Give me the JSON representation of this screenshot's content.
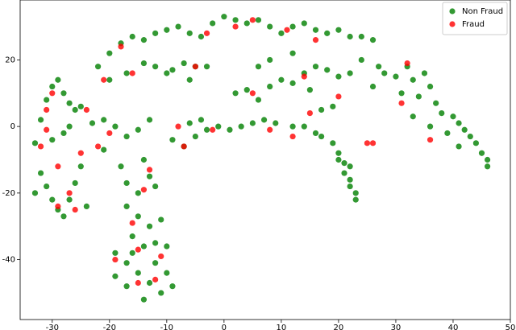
{
  "chart_data": {
    "type": "scatter",
    "xlim": [
      -35.6,
      50
    ],
    "ylim": [
      -58,
      38
    ],
    "xticks": [
      -30,
      -20,
      -10,
      0,
      10,
      20,
      30,
      40,
      50
    ],
    "yticks": [
      -40,
      -20,
      0,
      20
    ],
    "legend": "upper right",
    "series": [
      {
        "name": "Non Fraud",
        "color": "#008000",
        "x": [
          -22,
          -20,
          -18,
          -16,
          -14,
          -12,
          -10,
          -8,
          -6,
          -4,
          -2,
          0,
          2,
          4,
          6,
          8,
          10,
          12,
          14,
          16,
          18,
          20,
          22,
          24,
          26,
          -20,
          -17,
          -14,
          -12,
          -9,
          -7,
          -5,
          -3,
          -6,
          -10,
          -33,
          -32,
          -31,
          -30,
          -29,
          -28,
          -27,
          -26,
          -25,
          -32,
          -31,
          -30,
          -29,
          -28,
          -27,
          -26,
          -25,
          -24,
          -33,
          -30,
          -28,
          -27,
          -23,
          -21,
          -19,
          -17,
          -15,
          -13,
          -21,
          -18,
          -17,
          -15,
          -13,
          -14,
          -12,
          -17,
          -15,
          -13,
          -16,
          -12,
          -10,
          -19,
          -17,
          -15,
          -13,
          -11,
          -14,
          -17,
          -19,
          -10,
          -9,
          -12,
          -16,
          -11,
          -14,
          -9,
          -7,
          -5,
          -3,
          -1,
          1,
          3,
          5,
          7,
          9,
          12,
          14,
          16,
          -6,
          -4,
          2,
          4,
          6,
          8,
          10,
          12,
          14,
          16,
          18,
          20,
          22,
          24,
          6,
          8,
          12,
          15,
          17,
          19,
          17,
          19,
          20,
          21,
          21,
          22,
          22,
          23,
          23,
          20,
          22,
          28,
          30,
          32,
          33,
          35,
          36,
          34,
          37,
          38,
          40,
          41,
          42,
          43,
          44,
          45,
          46,
          46,
          39,
          41,
          36,
          33,
          31,
          26,
          27
        ],
        "y": [
          18,
          22,
          25,
          27,
          26,
          28,
          29,
          30,
          28,
          27,
          31,
          33,
          32,
          31,
          32,
          30,
          28,
          30,
          31,
          29,
          28,
          29,
          27,
          27,
          26,
          14,
          16,
          19,
          18,
          17,
          19,
          18,
          18,
          14,
          16,
          -5,
          2,
          8,
          12,
          14,
          10,
          7,
          5,
          6,
          -14,
          -18,
          -22,
          -25,
          -27,
          -22,
          -17,
          -12,
          -24,
          -20,
          -4,
          -2,
          0,
          1,
          2,
          0,
          -3,
          -1,
          2,
          -7,
          -12,
          -17,
          -20,
          -15,
          -10,
          -18,
          -24,
          -27,
          -30,
          -33,
          -35,
          -36,
          -38,
          -41,
          -44,
          -47,
          -50,
          -52,
          -48,
          -45,
          -44,
          -48,
          -41,
          -38,
          -28,
          -36,
          -4,
          -6,
          -3,
          -1,
          0,
          -1,
          0,
          1,
          2,
          1,
          0,
          0,
          -2,
          1,
          2,
          10,
          11,
          8,
          12,
          14,
          13,
          16,
          18,
          17,
          15,
          16,
          20,
          18,
          20,
          22,
          11,
          5,
          6,
          -3,
          -5,
          -8,
          -11,
          -14,
          -16,
          -18,
          -20,
          -22,
          -10,
          -12,
          16,
          15,
          18,
          14,
          16,
          12,
          9,
          7,
          4,
          3,
          1,
          -1,
          -3,
          -5,
          -8,
          -10,
          -12,
          -2,
          -6,
          0,
          3,
          10,
          12,
          18
        ]
      },
      {
        "name": "Fraud",
        "color": "#ff0000",
        "x": [
          -32,
          -31,
          -31,
          -30,
          -29,
          -29,
          -26,
          -27,
          -25,
          -24,
          -22,
          -20,
          -21,
          -18,
          -16,
          -13,
          -14,
          -16,
          -15,
          -19,
          -15,
          -12,
          -11,
          -7,
          -5,
          -3,
          2,
          5,
          -2,
          5,
          8,
          12,
          15,
          14,
          16,
          11,
          20,
          25,
          26,
          32,
          31,
          36,
          -8
        ],
        "y": [
          -6,
          -1,
          5,
          10,
          -12,
          -24,
          -25,
          -20,
          -8,
          5,
          -6,
          -2,
          14,
          24,
          16,
          -13,
          -19,
          -29,
          -37,
          -40,
          -47,
          -46,
          -39,
          -6,
          18,
          28,
          30,
          32,
          -1,
          10,
          -1,
          -3,
          4,
          15,
          26,
          29,
          9,
          -5,
          -5,
          19,
          7,
          -4,
          0
        ]
      }
    ]
  }
}
